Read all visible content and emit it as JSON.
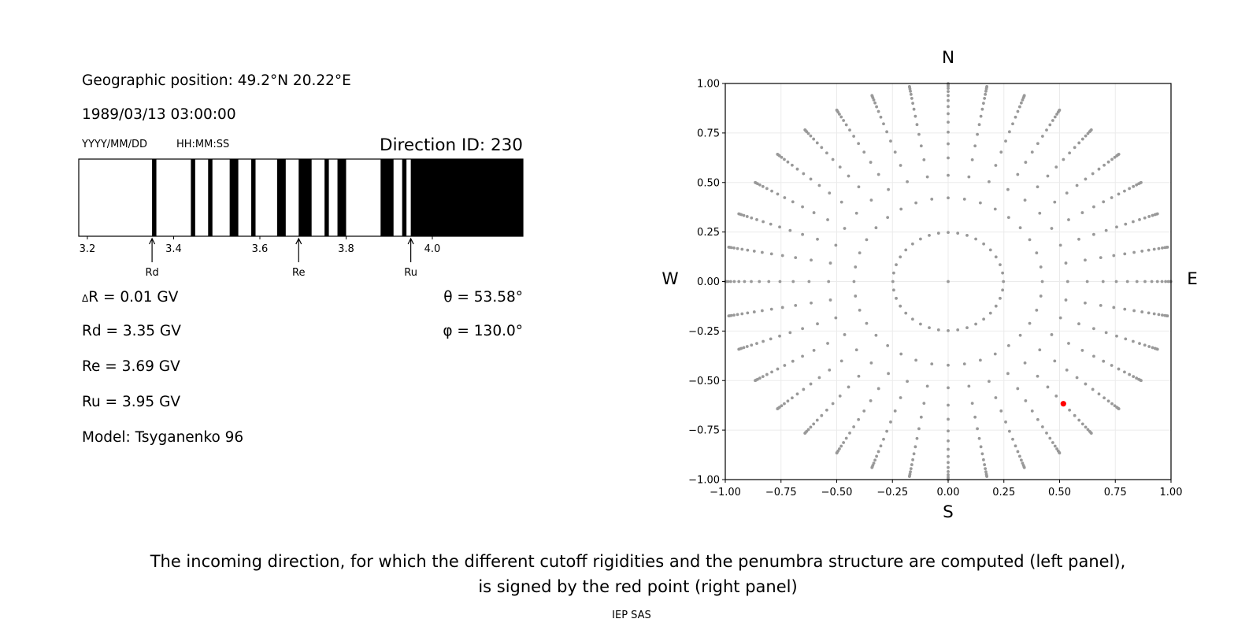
{
  "left_panel": {
    "geo_position": "Geographic position: 49.2°N 20.22°E",
    "datetime": "1989/03/13 03:00:00",
    "date_format": "YYYY/MM/DD",
    "time_format": "HH:MM:SS",
    "direction_id": "Direction ID: 230",
    "delta_r_symbol": "Δ",
    "delta_r": "R = 0.01 GV",
    "rd": "Rd = 3.35 GV",
    "re": "Re = 3.69 GV",
    "ru": "Ru = 3.95 GV",
    "model": "Model: Tsyganenko 96",
    "theta": "θ = 53.58°",
    "phi": "φ = 130.0°"
  },
  "caption": {
    "line1": "The incoming direction, for which the different cutoff rigidities and the penumbra structure are computed (left panel),",
    "line2": "is signed by the red point (right panel)",
    "credit": "IEP SAS"
  },
  "chart_data": [
    {
      "type": "bar",
      "description_kind": "penumbra",
      "xlim": [
        3.18,
        4.21
      ],
      "xticks": [
        "3.2",
        "3.4",
        "3.6",
        "3.8",
        "4.0"
      ],
      "xtick_values": [
        3.2,
        3.4,
        3.6,
        3.8,
        4.0
      ],
      "black_intervals": [
        [
          3.35,
          3.36
        ],
        [
          3.44,
          3.45
        ],
        [
          3.48,
          3.49
        ],
        [
          3.53,
          3.55
        ],
        [
          3.58,
          3.59
        ],
        [
          3.64,
          3.66
        ],
        [
          3.69,
          3.72
        ],
        [
          3.75,
          3.76
        ],
        [
          3.78,
          3.8
        ],
        [
          3.88,
          3.91
        ],
        [
          3.93,
          3.94
        ],
        [
          3.95,
          4.21
        ]
      ],
      "markers": [
        {
          "label": "Rd",
          "value": 3.35
        },
        {
          "label": "Re",
          "value": 3.69
        },
        {
          "label": "Ru",
          "value": 3.95
        }
      ],
      "colors": {
        "allowed": "#000000",
        "forbidden": "#ffffff"
      }
    },
    {
      "type": "scatter",
      "xlim": [
        -1.0,
        1.0
      ],
      "ylim": [
        -1.0,
        1.0
      ],
      "xticks": [
        "−1.00",
        "−0.75",
        "−0.50",
        "−0.25",
        "0.00",
        "0.25",
        "0.50",
        "0.75",
        "1.00"
      ],
      "yticks": [
        "−1.00",
        "−0.75",
        "−0.50",
        "−0.25",
        "0.00",
        "0.25",
        "0.50",
        "0.75",
        "1.00"
      ],
      "tick_values": [
        -1.0,
        -0.75,
        -0.5,
        -0.25,
        0.0,
        0.25,
        0.5,
        0.75,
        1.0
      ],
      "grid": true,
      "compass": {
        "north": "N",
        "south": "S",
        "west": "W",
        "east": "E"
      },
      "zenith_angles_deg": [
        0,
        14.36,
        24.99,
        32.44,
        38.62,
        44.05,
        48.99,
        53.58,
        57.91,
        62.05,
        66.03,
        69.89,
        73.67,
        77.36,
        81.01,
        84.62,
        88.21
      ],
      "azimuths_deg": [
        0,
        10,
        20,
        30,
        40,
        50,
        60,
        70,
        80,
        90,
        100,
        110,
        120,
        130,
        140,
        150,
        160,
        170,
        180,
        190,
        200,
        210,
        220,
        230,
        240,
        250,
        260,
        270,
        280,
        290,
        300,
        310,
        320,
        330,
        340,
        350
      ],
      "selected_point": {
        "x": 0.517,
        "y": -0.617
      },
      "colors": {
        "points": "#999999",
        "selected": "#ff0000",
        "grid": "#ebebeb"
      }
    }
  ]
}
